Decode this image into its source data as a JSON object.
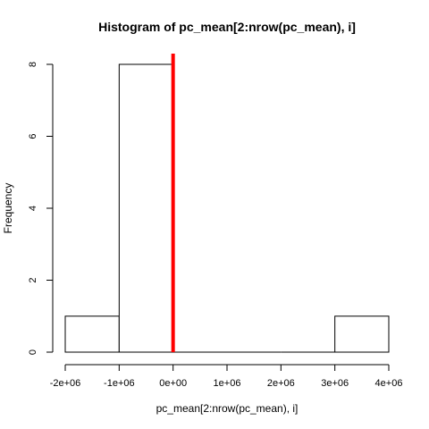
{
  "chart_data": {
    "type": "bar",
    "title": "Histogram of pc_mean[2:nrow(pc_mean), i]",
    "xlabel": "pc_mean[2:nrow(pc_mean), i]",
    "ylabel": "Frequency",
    "bins": [
      {
        "start": -2000000,
        "end": -1000000,
        "count": 1
      },
      {
        "start": -1000000,
        "end": 0,
        "count": 8
      },
      {
        "start": 0,
        "end": 1000000,
        "count": 0
      },
      {
        "start": 1000000,
        "end": 2000000,
        "count": 0
      },
      {
        "start": 2000000,
        "end": 3000000,
        "count": 0
      },
      {
        "start": 3000000,
        "end": 4000000,
        "count": 1
      }
    ],
    "xlim": [
      -2000000,
      4000000
    ],
    "ylim": [
      0,
      8
    ],
    "x_ticks": [
      {
        "value": -2000000,
        "label": "-2e+06"
      },
      {
        "value": -1000000,
        "label": "-1e+06"
      },
      {
        "value": 0,
        "label": "0e+00"
      },
      {
        "value": 1000000,
        "label": "1e+06"
      },
      {
        "value": 2000000,
        "label": "2e+06"
      },
      {
        "value": 3000000,
        "label": "3e+06"
      },
      {
        "value": 4000000,
        "label": "4e+06"
      }
    ],
    "y_ticks": [
      {
        "value": 0,
        "label": "0"
      },
      {
        "value": 2,
        "label": "2"
      },
      {
        "value": 4,
        "label": "4"
      },
      {
        "value": 6,
        "label": "6"
      },
      {
        "value": 8,
        "label": "8"
      }
    ],
    "reference_line": {
      "x": 0,
      "color": "#ff0000"
    },
    "bar_fill": "#ffffff",
    "bar_stroke": "#000000",
    "grid": false,
    "legend": "none"
  }
}
